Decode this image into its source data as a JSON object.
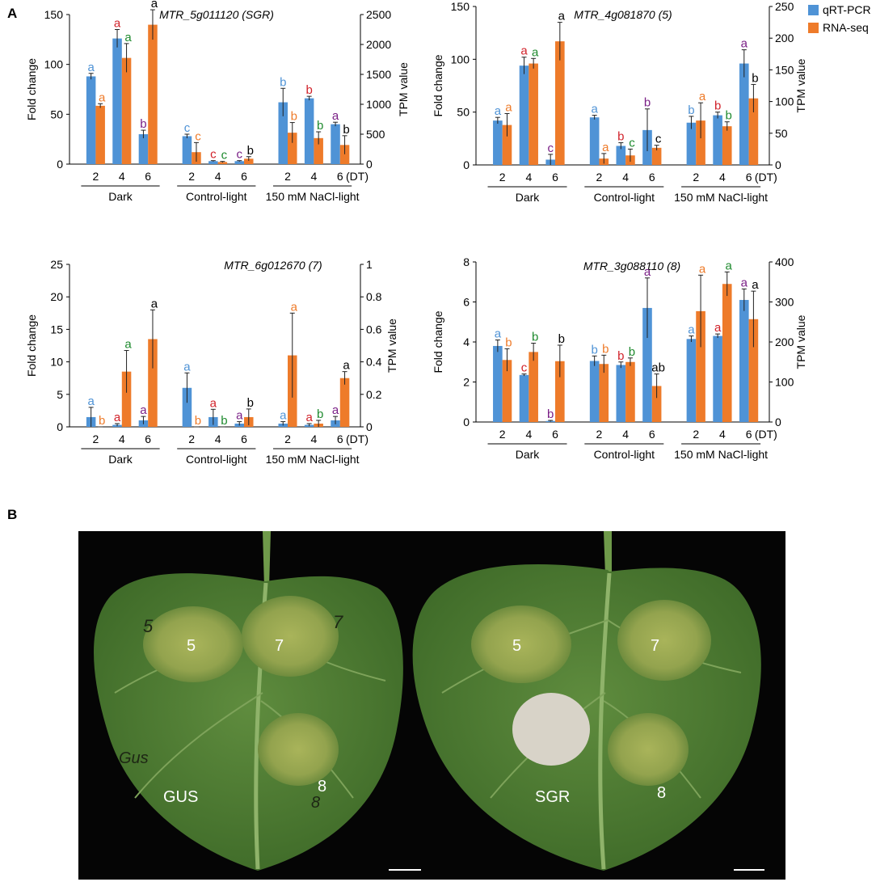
{
  "panels": {
    "a": "A",
    "b": "B"
  },
  "legend": [
    {
      "name": "qRT-PCR",
      "color": "#4f93d6"
    },
    {
      "name": "RNA-seq",
      "color": "#ee7b2a"
    }
  ],
  "letter_colors": {
    "blue": "#4f93d6",
    "orange": "#ee7b2a",
    "red": "#d1222a",
    "green": "#1e8a2e",
    "purple": "#7a1f86",
    "black": "#000000"
  },
  "chart_data": [
    {
      "type": "bar",
      "title": "MTR_5g011120 (SGR)",
      "ylabel": "Fold change",
      "y2label": "TPM value",
      "ylim": [
        0,
        150
      ],
      "y2lim": [
        0,
        2500
      ],
      "yticks": [
        "0",
        "50",
        "100",
        "150"
      ],
      "y2ticks": [
        "0",
        "500",
        "1000",
        "1500",
        "2000",
        "2500"
      ],
      "groups": [
        "Dark",
        "Control-light",
        "150 mM NaCl-light"
      ],
      "categories": [
        "2",
        "4",
        "6",
        "2",
        "4",
        "6",
        "2",
        "4",
        "6"
      ],
      "xunit": "(DT)",
      "series": [
        {
          "name": "qRT-PCR",
          "axis": "left",
          "values": [
            88,
            126,
            30,
            28,
            3,
            3,
            62,
            66,
            40
          ],
          "errors": [
            3,
            9,
            4,
            2,
            0.5,
            0.5,
            14,
            2,
            2
          ],
          "letters": [
            "a",
            "a",
            "b",
            "c",
            "c",
            "c",
            "b",
            "b",
            "a"
          ],
          "letter_colors": [
            "blue",
            "red",
            "purple",
            "blue",
            "red",
            "purple",
            "blue",
            "red",
            "purple"
          ]
        },
        {
          "name": "RNA-seq",
          "axis": "right",
          "values": [
            975,
            1775,
            2330,
            200,
            35,
            90,
            525,
            435,
            320
          ],
          "errors": [
            35,
            240,
            250,
            160,
            10,
            35,
            170,
            105,
            155
          ],
          "letters": [
            "a",
            "a",
            "a",
            "c",
            "c",
            "b",
            "b",
            "b",
            "b"
          ],
          "letter_colors": [
            "orange",
            "green",
            "black",
            "orange",
            "green",
            "black",
            "orange",
            "green",
            "black"
          ]
        }
      ]
    },
    {
      "type": "bar",
      "title": "MTR_4g081870 (5)",
      "ylabel": "Fold change",
      "y2label": "TPM value",
      "ylim": [
        0,
        150
      ],
      "y2lim": [
        0,
        250
      ],
      "yticks": [
        "0",
        "50",
        "100",
        "150"
      ],
      "y2ticks": [
        "0",
        "50",
        "100",
        "150",
        "200",
        "250"
      ],
      "groups": [
        "Dark",
        "Control-light",
        "150 mM NaCl-light"
      ],
      "categories": [
        "2",
        "4",
        "6",
        "2",
        "4",
        "6",
        "2",
        "4",
        "6"
      ],
      "xunit": "(DT)",
      "series": [
        {
          "name": "qRT-PCR",
          "axis": "left",
          "values": [
            42,
            94,
            5,
            45,
            18,
            33,
            40,
            47,
            96
          ],
          "errors": [
            3,
            8,
            5,
            2,
            3,
            20,
            6,
            3,
            13
          ],
          "letters": [
            "a",
            "a",
            "c",
            "a",
            "b",
            "b",
            "b",
            "b",
            "a"
          ],
          "letter_colors": [
            "blue",
            "red",
            "purple",
            "blue",
            "red",
            "purple",
            "blue",
            "red",
            "purple"
          ]
        },
        {
          "name": "RNA-seq",
          "axis": "right",
          "values": [
            63,
            160,
            195,
            10,
            15,
            27,
            70,
            61,
            105
          ],
          "errors": [
            18,
            8,
            30,
            8,
            10,
            4,
            28,
            7,
            22
          ],
          "letters": [
            "a",
            "a",
            "a",
            "a",
            "c",
            "c",
            "a",
            "b",
            "b"
          ],
          "letter_colors": [
            "orange",
            "green",
            "black",
            "orange",
            "green",
            "black",
            "orange",
            "green",
            "black"
          ]
        }
      ]
    },
    {
      "type": "bar",
      "title": "MTR_6g012670 (7)",
      "ylabel": "Fold change",
      "y2label": "TPM value",
      "ylim": [
        0,
        25
      ],
      "y2lim": [
        0,
        1
      ],
      "yticks": [
        "0",
        "5",
        "10",
        "15",
        "20",
        "25"
      ],
      "y2ticks": [
        "0",
        "0.2",
        "0.4",
        "0.6",
        "0.8",
        "1"
      ],
      "groups": [
        "Dark",
        "Control-light",
        "150 mM NaCl-light"
      ],
      "categories": [
        "2",
        "4",
        "6",
        "2",
        "4",
        "6",
        "2",
        "4",
        "6"
      ],
      "xunit": "(DT)",
      "series": [
        {
          "name": "qRT-PCR",
          "axis": "left",
          "values": [
            1.5,
            0.3,
            1,
            6,
            1.5,
            0.5,
            0.5,
            0.3,
            1
          ],
          "errors": [
            1.5,
            0.2,
            0.6,
            2.3,
            1.2,
            0.3,
            0.3,
            0.2,
            0.6
          ],
          "letters": [
            "a",
            "a",
            "a",
            "a",
            "a",
            "a",
            "a",
            "a",
            "a"
          ],
          "letter_colors": [
            "blue",
            "red",
            "purple",
            "blue",
            "red",
            "purple",
            "blue",
            "red",
            "purple"
          ]
        },
        {
          "name": "RNA-seq",
          "axis": "right",
          "values": [
            0,
            0.34,
            0.54,
            0,
            0,
            0.06,
            0.44,
            0.02,
            0.3
          ],
          "errors": [
            0,
            0.13,
            0.18,
            0,
            0,
            0.05,
            0.26,
            0.02,
            0.04
          ],
          "letters": [
            "b",
            "a",
            "a",
            "b",
            "b",
            "b",
            "a",
            "b",
            "a"
          ],
          "letter_colors": [
            "orange",
            "green",
            "black",
            "orange",
            "green",
            "black",
            "orange",
            "green",
            "black"
          ]
        }
      ]
    },
    {
      "type": "bar",
      "title": "MTR_3g088110 (8)",
      "ylabel": "Fold change",
      "y2label": "TPM value",
      "ylim": [
        0,
        8
      ],
      "y2lim": [
        0,
        400
      ],
      "yticks": [
        "0",
        "2",
        "4",
        "6",
        "8"
      ],
      "y2ticks": [
        "0",
        "100",
        "200",
        "300",
        "400"
      ],
      "groups": [
        "Dark",
        "Control-light",
        "150 mM NaCl-light"
      ],
      "categories": [
        "2",
        "4",
        "6",
        "2",
        "4",
        "6",
        "2",
        "4",
        "6"
      ],
      "xunit": "(DT)",
      "series": [
        {
          "name": "qRT-PCR",
          "axis": "left",
          "values": [
            3.8,
            2.35,
            0.05,
            3.05,
            2.85,
            5.7,
            4.15,
            4.3,
            6.1
          ],
          "errors": [
            0.3,
            0.05,
            0.03,
            0.25,
            0.15,
            1.5,
            0.15,
            0.1,
            0.55
          ],
          "letters": [
            "a",
            "c",
            "b",
            "b",
            "b",
            "a",
            "a",
            "a",
            "a"
          ],
          "letter_colors": [
            "blue",
            "red",
            "purple",
            "blue",
            "red",
            "purple",
            "blue",
            "red",
            "purple"
          ]
        },
        {
          "name": "RNA-seq",
          "axis": "right",
          "values": [
            155,
            175,
            152,
            145,
            150,
            90,
            277,
            345,
            257
          ],
          "errors": [
            28,
            22,
            40,
            22,
            10,
            30,
            90,
            30,
            70
          ],
          "letters": [
            "b",
            "b",
            "b",
            "b",
            "b",
            "ab",
            "a",
            "a",
            "a"
          ],
          "letter_colors": [
            "orange",
            "green",
            "black",
            "orange",
            "green",
            "black",
            "orange",
            "green",
            "black"
          ]
        }
      ]
    }
  ],
  "photo": {
    "leaf_left": {
      "marks": [
        "5",
        "7",
        "GUS",
        "8"
      ],
      "handwriting": [
        "5",
        "7",
        "Gus",
        "8"
      ]
    },
    "leaf_right": {
      "marks": [
        "5",
        "7",
        "SGR",
        "8"
      ]
    }
  }
}
